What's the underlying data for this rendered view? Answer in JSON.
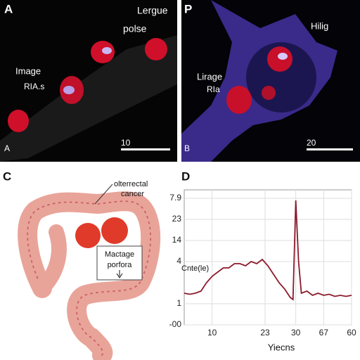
{
  "panels": {
    "a": {
      "letter": "A",
      "corner": "A",
      "labels": [
        "Lergue",
        "polse",
        "Image",
        "RIA.s"
      ],
      "scale": "10"
    },
    "b": {
      "letter": "P",
      "corner": "B",
      "labels": [
        "Hilig",
        "Lirage",
        "RIa"
      ],
      "scale": "20"
    },
    "c": {
      "letter": "C",
      "callout": [
        "olterrectal",
        "cancer"
      ],
      "box": [
        "Mactage",
        "porfora"
      ]
    }
  },
  "chart_data": {
    "type": "line",
    "panel": "D",
    "xlabel": "Yiecns",
    "ylabel": "Cnte(le)",
    "x": [
      0,
      2,
      4,
      6,
      8,
      10,
      12,
      14,
      16,
      18,
      20,
      22,
      24,
      26,
      28,
      30,
      32,
      34,
      36,
      38,
      39,
      40,
      41,
      42,
      44,
      46,
      48,
      50,
      52,
      54,
      56,
      58,
      60
    ],
    "series": [
      {
        "name": "Cnte(le)",
        "color": "#8b1a2b",
        "values": [
          1.5,
          1.45,
          1.5,
          1.6,
          2.0,
          2.3,
          2.5,
          2.7,
          2.7,
          2.9,
          2.9,
          2.8,
          3.0,
          2.9,
          3.1,
          2.8,
          2.4,
          2.0,
          1.7,
          1.3,
          1.2,
          5.9,
          3.0,
          1.5,
          1.6,
          1.4,
          1.5,
          1.4,
          1.45,
          1.35,
          1.4,
          1.35,
          1.4
        ]
      }
    ],
    "xlim": [
      0,
      60
    ],
    "ylim": [
      0,
      6.4
    ],
    "xticks": [
      10,
      {
        "value": 29,
        "label": "23"
      },
      {
        "value": 40,
        "label": "30"
      },
      {
        "value": 50,
        "label": "67"
      },
      60
    ],
    "yticks": [
      {
        "value": 0,
        "label": "-00"
      },
      1,
      {
        "value": 3,
        "label": "4"
      },
      {
        "value": 4,
        "label": "14"
      },
      {
        "value": 5,
        "label": "23"
      },
      {
        "value": 6,
        "label": "7.9"
      }
    ],
    "grid": true
  }
}
